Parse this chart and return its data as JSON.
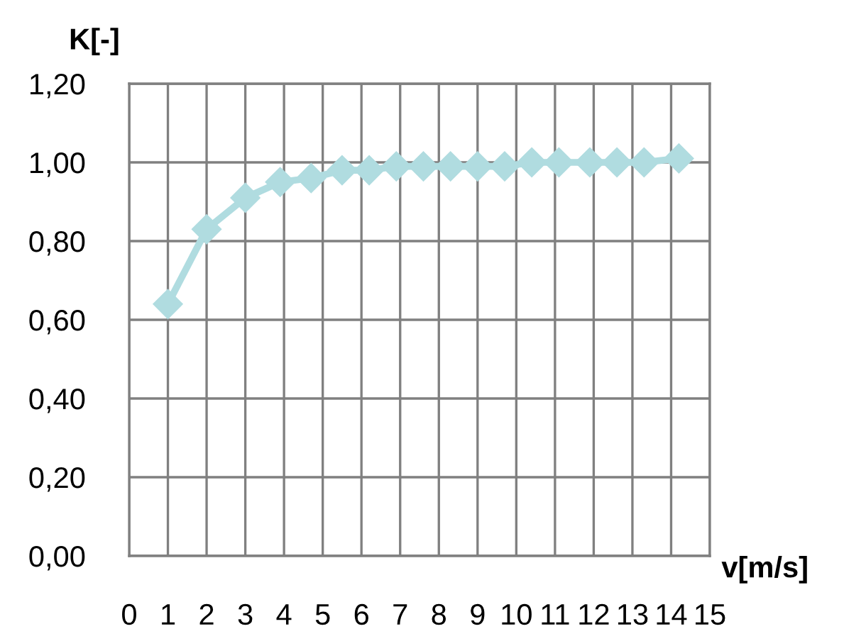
{
  "chart_data": {
    "type": "line",
    "xlabel": "v[m/s]",
    "ylabel": "K[-]",
    "series": [
      {
        "color": "#b0dce0",
        "x": [
          1,
          2,
          3,
          3.9,
          4.7,
          5.5,
          6.2,
          6.9,
          7.6,
          8.3,
          9,
          9.7,
          10.4,
          11.1,
          11.9,
          12.6,
          13.3,
          14.2
        ],
        "values": [
          0.64,
          0.83,
          0.91,
          0.95,
          0.96,
          0.98,
          0.98,
          0.99,
          0.99,
          0.99,
          0.99,
          0.99,
          1.0,
          1.0,
          1.0,
          1.0,
          1.0,
          1.01
        ]
      }
    ],
    "marker": "diamond",
    "line_style": "solid",
    "xlim": [
      0,
      15
    ],
    "xticks": [
      0,
      1,
      2,
      3,
      4,
      5,
      6,
      7,
      8,
      9,
      10,
      11,
      12,
      13,
      14,
      15
    ],
    "ylim": [
      0,
      1.2
    ],
    "yticks": [
      {
        "value": 0,
        "label": "0,00"
      },
      {
        "value": 0.2,
        "label": "0,20"
      },
      {
        "value": 0.4,
        "label": "0,40"
      },
      {
        "value": 0.6,
        "label": "0,60"
      },
      {
        "value": 0.8,
        "label": "0,80"
      },
      {
        "value": 1.0,
        "label": "1,00"
      },
      {
        "value": 1.2,
        "label": "1,20"
      }
    ],
    "grid": true
  }
}
